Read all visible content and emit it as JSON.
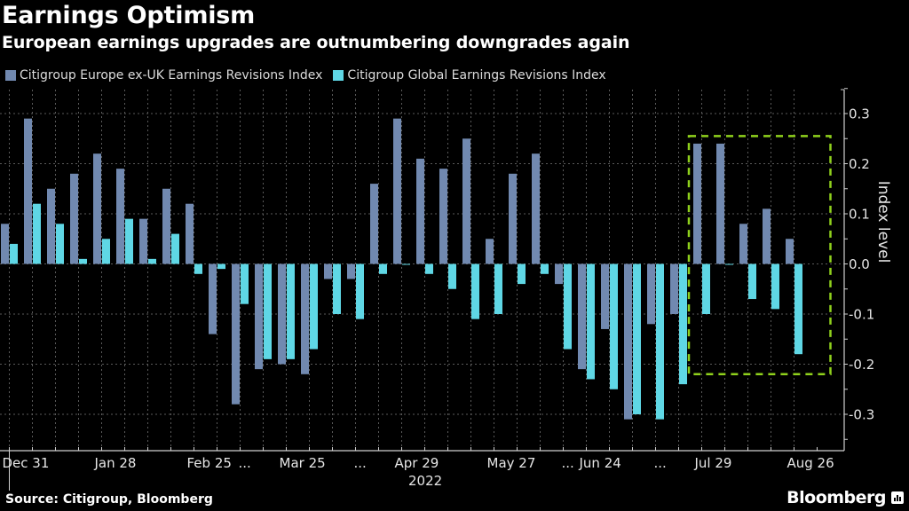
{
  "header": {
    "title": "Earnings Optimism",
    "subtitle": "European earnings upgrades are outnumbering downgrades again"
  },
  "footer": {
    "source": "Source: Citigroup, Bloomberg",
    "brand": "Bloomberg",
    "brand_icon": "bloomberg-chart-icon"
  },
  "colors": {
    "europe": "#7189b0",
    "global": "#5fd7e5",
    "highlight": "#8fd11c",
    "grid": "#5a5a5a",
    "axis": "#d0d0d0"
  },
  "chart_data": {
    "type": "bar",
    "title": "Earnings Optimism",
    "subtitle": "European earnings upgrades are outnumbering downgrades again",
    "xlabel": "2022",
    "ylabel": "Index level",
    "ylim": [
      -0.37,
      0.35
    ],
    "yticks": [
      0.3,
      0.2,
      0.1,
      0.0,
      -0.1,
      -0.2,
      -0.3
    ],
    "ytick_labels": [
      "0.3",
      "0.2",
      "0.1",
      "0.0",
      "-0.1",
      "-0.2",
      "-0.3"
    ],
    "y_axis_side": "right",
    "grid": true,
    "legend_position": "top-left",
    "x_tick_labels": [
      {
        "index": 0,
        "label": "Dec 31"
      },
      {
        "index": 4,
        "label": "Jan 28"
      },
      {
        "index": 8,
        "label": "Feb 25"
      },
      {
        "index": 10,
        "label": "..."
      },
      {
        "index": 12,
        "label": "Mar 25"
      },
      {
        "index": 15,
        "label": "..."
      },
      {
        "index": 17,
        "label": "Apr 29"
      },
      {
        "index": 21,
        "label": "May 27"
      },
      {
        "index": 24,
        "label": "..."
      },
      {
        "index": 25,
        "label": "Jun 24"
      },
      {
        "index": 28,
        "label": "..."
      },
      {
        "index": 30,
        "label": "Jul 29"
      },
      {
        "index": 34,
        "label": "Aug 26"
      }
    ],
    "year_label": "2022",
    "n_periods": 35,
    "series": [
      {
        "name": "Citigroup Europe ex-UK Earnings Revisions Index",
        "color": "#7189b0",
        "values": [
          0.08,
          0.29,
          0.15,
          0.18,
          0.22,
          0.19,
          0.09,
          0.15,
          0.12,
          -0.14,
          -0.28,
          -0.21,
          -0.2,
          -0.22,
          -0.03,
          -0.03,
          0.16,
          0.29,
          0.21,
          0.19,
          0.25,
          0.05,
          0.18,
          0.22,
          -0.04,
          -0.21,
          -0.13,
          -0.31,
          -0.12,
          -0.1,
          0.24,
          0.24,
          0.08,
          0.11,
          0.05
        ]
      },
      {
        "name": "Citigroup Global Earnings Revisions Index",
        "color": "#5fd7e5",
        "values": [
          0.04,
          0.12,
          0.08,
          0.01,
          0.05,
          0.09,
          0.01,
          0.06,
          -0.02,
          -0.01,
          -0.08,
          -0.19,
          -0.19,
          -0.17,
          -0.1,
          -0.11,
          -0.02,
          0.0,
          -0.02,
          -0.05,
          -0.11,
          -0.1,
          -0.04,
          -0.02,
          -0.17,
          -0.23,
          -0.25,
          -0.3,
          -0.31,
          -0.24,
          -0.1,
          0.0,
          -0.07,
          -0.09,
          -0.18
        ]
      }
    ],
    "annotation": {
      "type": "dashed-box",
      "description": "highlight of latest periods",
      "from_index": 29.5,
      "to_index": 35.5,
      "y_range": [
        -0.22,
        0.255
      ]
    }
  }
}
